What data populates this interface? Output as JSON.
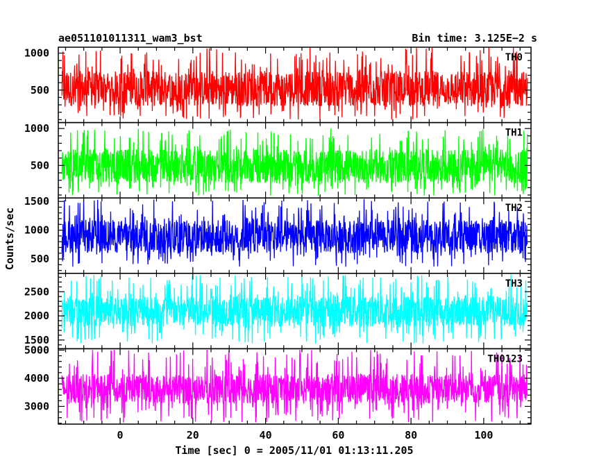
{
  "header": {
    "title": "ae051101011311_wam3_bst",
    "bin_time": "Bin time: 3.125E−2 s"
  },
  "axes": {
    "ylabel": "Counts/sec",
    "xlabel": "Time [sec] 0 = 2005/11/01 01:13:11.205",
    "x_ticks": [
      "0",
      "20",
      "40",
      "60",
      "80",
      "100"
    ]
  },
  "chart_data": {
    "type": "line",
    "x_range": [
      -17,
      113
    ],
    "x_data_range": [
      -16,
      112
    ],
    "bin_time": 0.03125,
    "x_major_ticks": [
      0,
      20,
      40,
      60,
      80,
      100
    ],
    "x_minor_step": 5,
    "series": [
      {
        "name": "TH0",
        "color": "#ff0000",
        "ylim": [
          60,
          1080
        ],
        "y_ticks": [
          500,
          1000
        ],
        "y_tick_labels": [
          "500",
          "1000"
        ],
        "y_minor_step": 100,
        "typical_range": [
          280,
          760
        ],
        "spike_range": [
          100,
          1080
        ]
      },
      {
        "name": "TH1",
        "color": "#00ff00",
        "ylim": [
          60,
          1080
        ],
        "y_ticks": [
          500,
          1000
        ],
        "y_tick_labels": [
          "500",
          "1000"
        ],
        "y_minor_step": 100,
        "typical_range": [
          260,
          720
        ],
        "spike_range": [
          90,
          1000
        ]
      },
      {
        "name": "TH2",
        "color": "#0000ff",
        "ylim": [
          250,
          1560
        ],
        "y_ticks": [
          500,
          1000,
          1500
        ],
        "y_tick_labels": [
          "500",
          "1000",
          "1500"
        ],
        "y_minor_step": 100,
        "typical_range": [
          600,
          1180
        ],
        "spike_range": [
          360,
          1540
        ]
      },
      {
        "name": "TH3",
        "color": "#00ffff",
        "ylim": [
          1320,
          2880
        ],
        "y_ticks": [
          1500,
          2000,
          2500
        ],
        "y_tick_labels": [
          "1500",
          "2000",
          "2500"
        ],
        "y_minor_step": 100,
        "typical_range": [
          1780,
          2420
        ],
        "spike_range": [
          1420,
          2860
        ]
      },
      {
        "name": "TH0123",
        "color": "#ff00ff",
        "ylim": [
          2370,
          5050
        ],
        "y_ticks": [
          3000,
          4000,
          5000
        ],
        "y_tick_labels": [
          "3000",
          "4000",
          "5000"
        ],
        "y_minor_step": 200,
        "typical_range": [
          3100,
          4150
        ],
        "spike_range": [
          2420,
          5020
        ]
      }
    ]
  }
}
